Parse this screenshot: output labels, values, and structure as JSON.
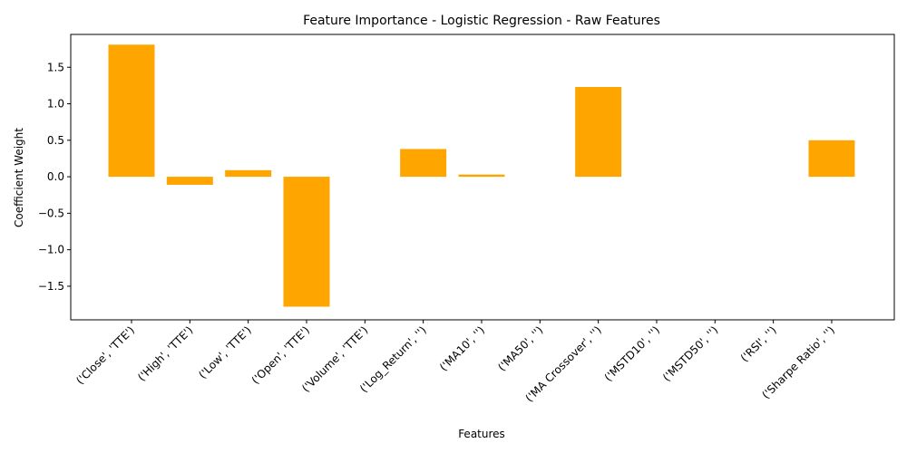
{
  "chart_data": {
    "type": "bar",
    "title": "Feature Importance - Logistic Regression - Raw Features",
    "xlabel": "Features",
    "ylabel": "Coefficient Weight",
    "categories": [
      "('Close', 'TTE')",
      "('High', 'TTE')",
      "('Low', 'TTE')",
      "('Open', 'TTE')",
      "('Volume', 'TTE')",
      "('Log_Return', '')",
      "('MA10', '')",
      "('MA50', '')",
      "('MA Crossover', '')",
      "('MSTD10', '')",
      "('MSTD50', '')",
      "('RSI', '')",
      "('Sharpe Ratio', '')"
    ],
    "values": [
      1.81,
      -0.11,
      0.09,
      -1.78,
      0.0,
      0.38,
      0.03,
      0.0,
      1.23,
      0.0,
      0.0,
      0.0,
      0.5
    ],
    "yticks": [
      "−1.5",
      "−1.0",
      "−0.5",
      "0.0",
      "0.5",
      "1.0",
      "1.5"
    ],
    "ylim": [
      -1.96,
      1.95
    ],
    "color": "#ffa500",
    "grid": false,
    "legend": "none"
  }
}
